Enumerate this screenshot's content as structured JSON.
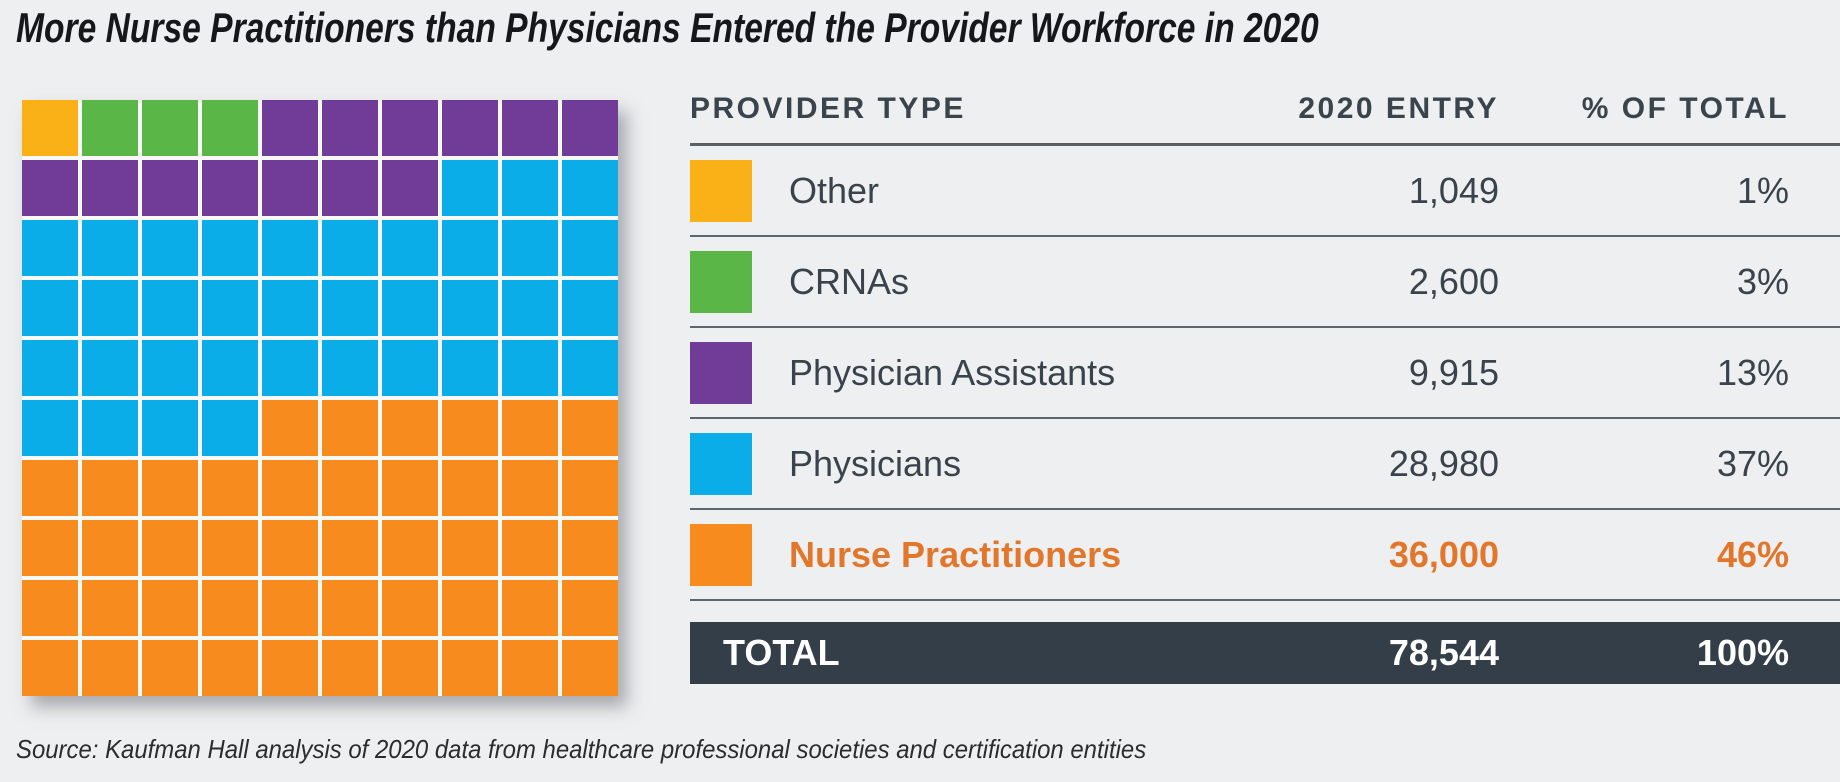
{
  "title": "More Nurse Practitioners than Physicians Entered the Provider Workforce in 2020",
  "source": "Source: Kaufman Hall analysis of 2020 data from healthcare professional societies and certification entities",
  "colors": {
    "background": "#eeeff0",
    "text_dark": "#3a434c",
    "highlight_orange_text": "#e2772c",
    "total_bar_bg": "#333e48",
    "total_bar_text": "#ffffff",
    "separator": "#5d666d"
  },
  "chart_data": {
    "type": "waffle",
    "title": "More Nurse Practitioners than Physicians Entered the Provider Workforce in 2020",
    "categories": [
      "Other",
      "CRNAs",
      "Physician Assistants",
      "Physicians",
      "Nurse Practitioners"
    ],
    "slugs": [
      "other",
      "crnas",
      "physician-assistants",
      "physicians",
      "nurse-practitioners"
    ],
    "values": [
      1049,
      2600,
      9915,
      28980,
      36000
    ],
    "percents": [
      1,
      3,
      13,
      37,
      46
    ],
    "total": 78544,
    "colors": [
      "#f9b117",
      "#5bb648",
      "#703c97",
      "#0bade9",
      "#f78b1e"
    ],
    "grid": {
      "rows": 10,
      "cols": 10,
      "fill_order": "left-to-right, top-to-bottom",
      "squares_per_category": [
        1,
        3,
        13,
        37,
        46
      ]
    }
  },
  "table": {
    "headers": {
      "provider_type": "PROVIDER TYPE",
      "entry": "2020 ENTRY",
      "pct": "% OF TOTAL"
    },
    "rows": [
      {
        "label": "Other",
        "value": "1,049",
        "pct": "1%",
        "color": "#f9b117",
        "highlight": false
      },
      {
        "label": "CRNAs",
        "value": "2,600",
        "pct": "3%",
        "color": "#5bb648",
        "highlight": false
      },
      {
        "label": "Physician Assistants",
        "value": "9,915",
        "pct": "13%",
        "color": "#703c97",
        "highlight": false
      },
      {
        "label": "Physicians",
        "value": "28,980",
        "pct": "37%",
        "color": "#0bade9",
        "highlight": false
      },
      {
        "label": "Nurse Practitioners",
        "value": "36,000",
        "pct": "46%",
        "color": "#f78b1e",
        "highlight": true
      }
    ],
    "total_row": {
      "label": "TOTAL",
      "value": "78,544",
      "pct": "100%"
    }
  }
}
